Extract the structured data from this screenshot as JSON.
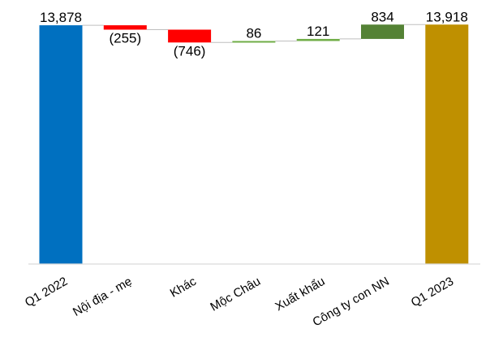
{
  "chart_data": {
    "type": "bar",
    "subtype": "waterfall",
    "categories": [
      "Q1 2022",
      "Nội địa - mẹ",
      "Khác",
      "Mộc Châu",
      "Xuất khẩu",
      "Công ty con NN",
      "Q1 2023"
    ],
    "values": [
      13878,
      -255,
      -746,
      86,
      121,
      834,
      13918
    ],
    "labels": [
      "13,878",
      "(255)",
      "(746)",
      "86",
      "121",
      "834",
      "13,918"
    ],
    "kinds": [
      "total",
      "delta",
      "delta",
      "delta",
      "delta",
      "delta",
      "total"
    ],
    "colors": [
      "#0070C0",
      "#FF0000",
      "#FF0000",
      "#70AD47",
      "#70AD47",
      "#548235",
      "#BF9000"
    ],
    "axis_color": "#D9D9D9",
    "connector_color": "#BFBFBF",
    "title": "",
    "xlabel": "",
    "ylabel": "",
    "y_axis_visible": false,
    "grid": false,
    "legend": "none"
  }
}
